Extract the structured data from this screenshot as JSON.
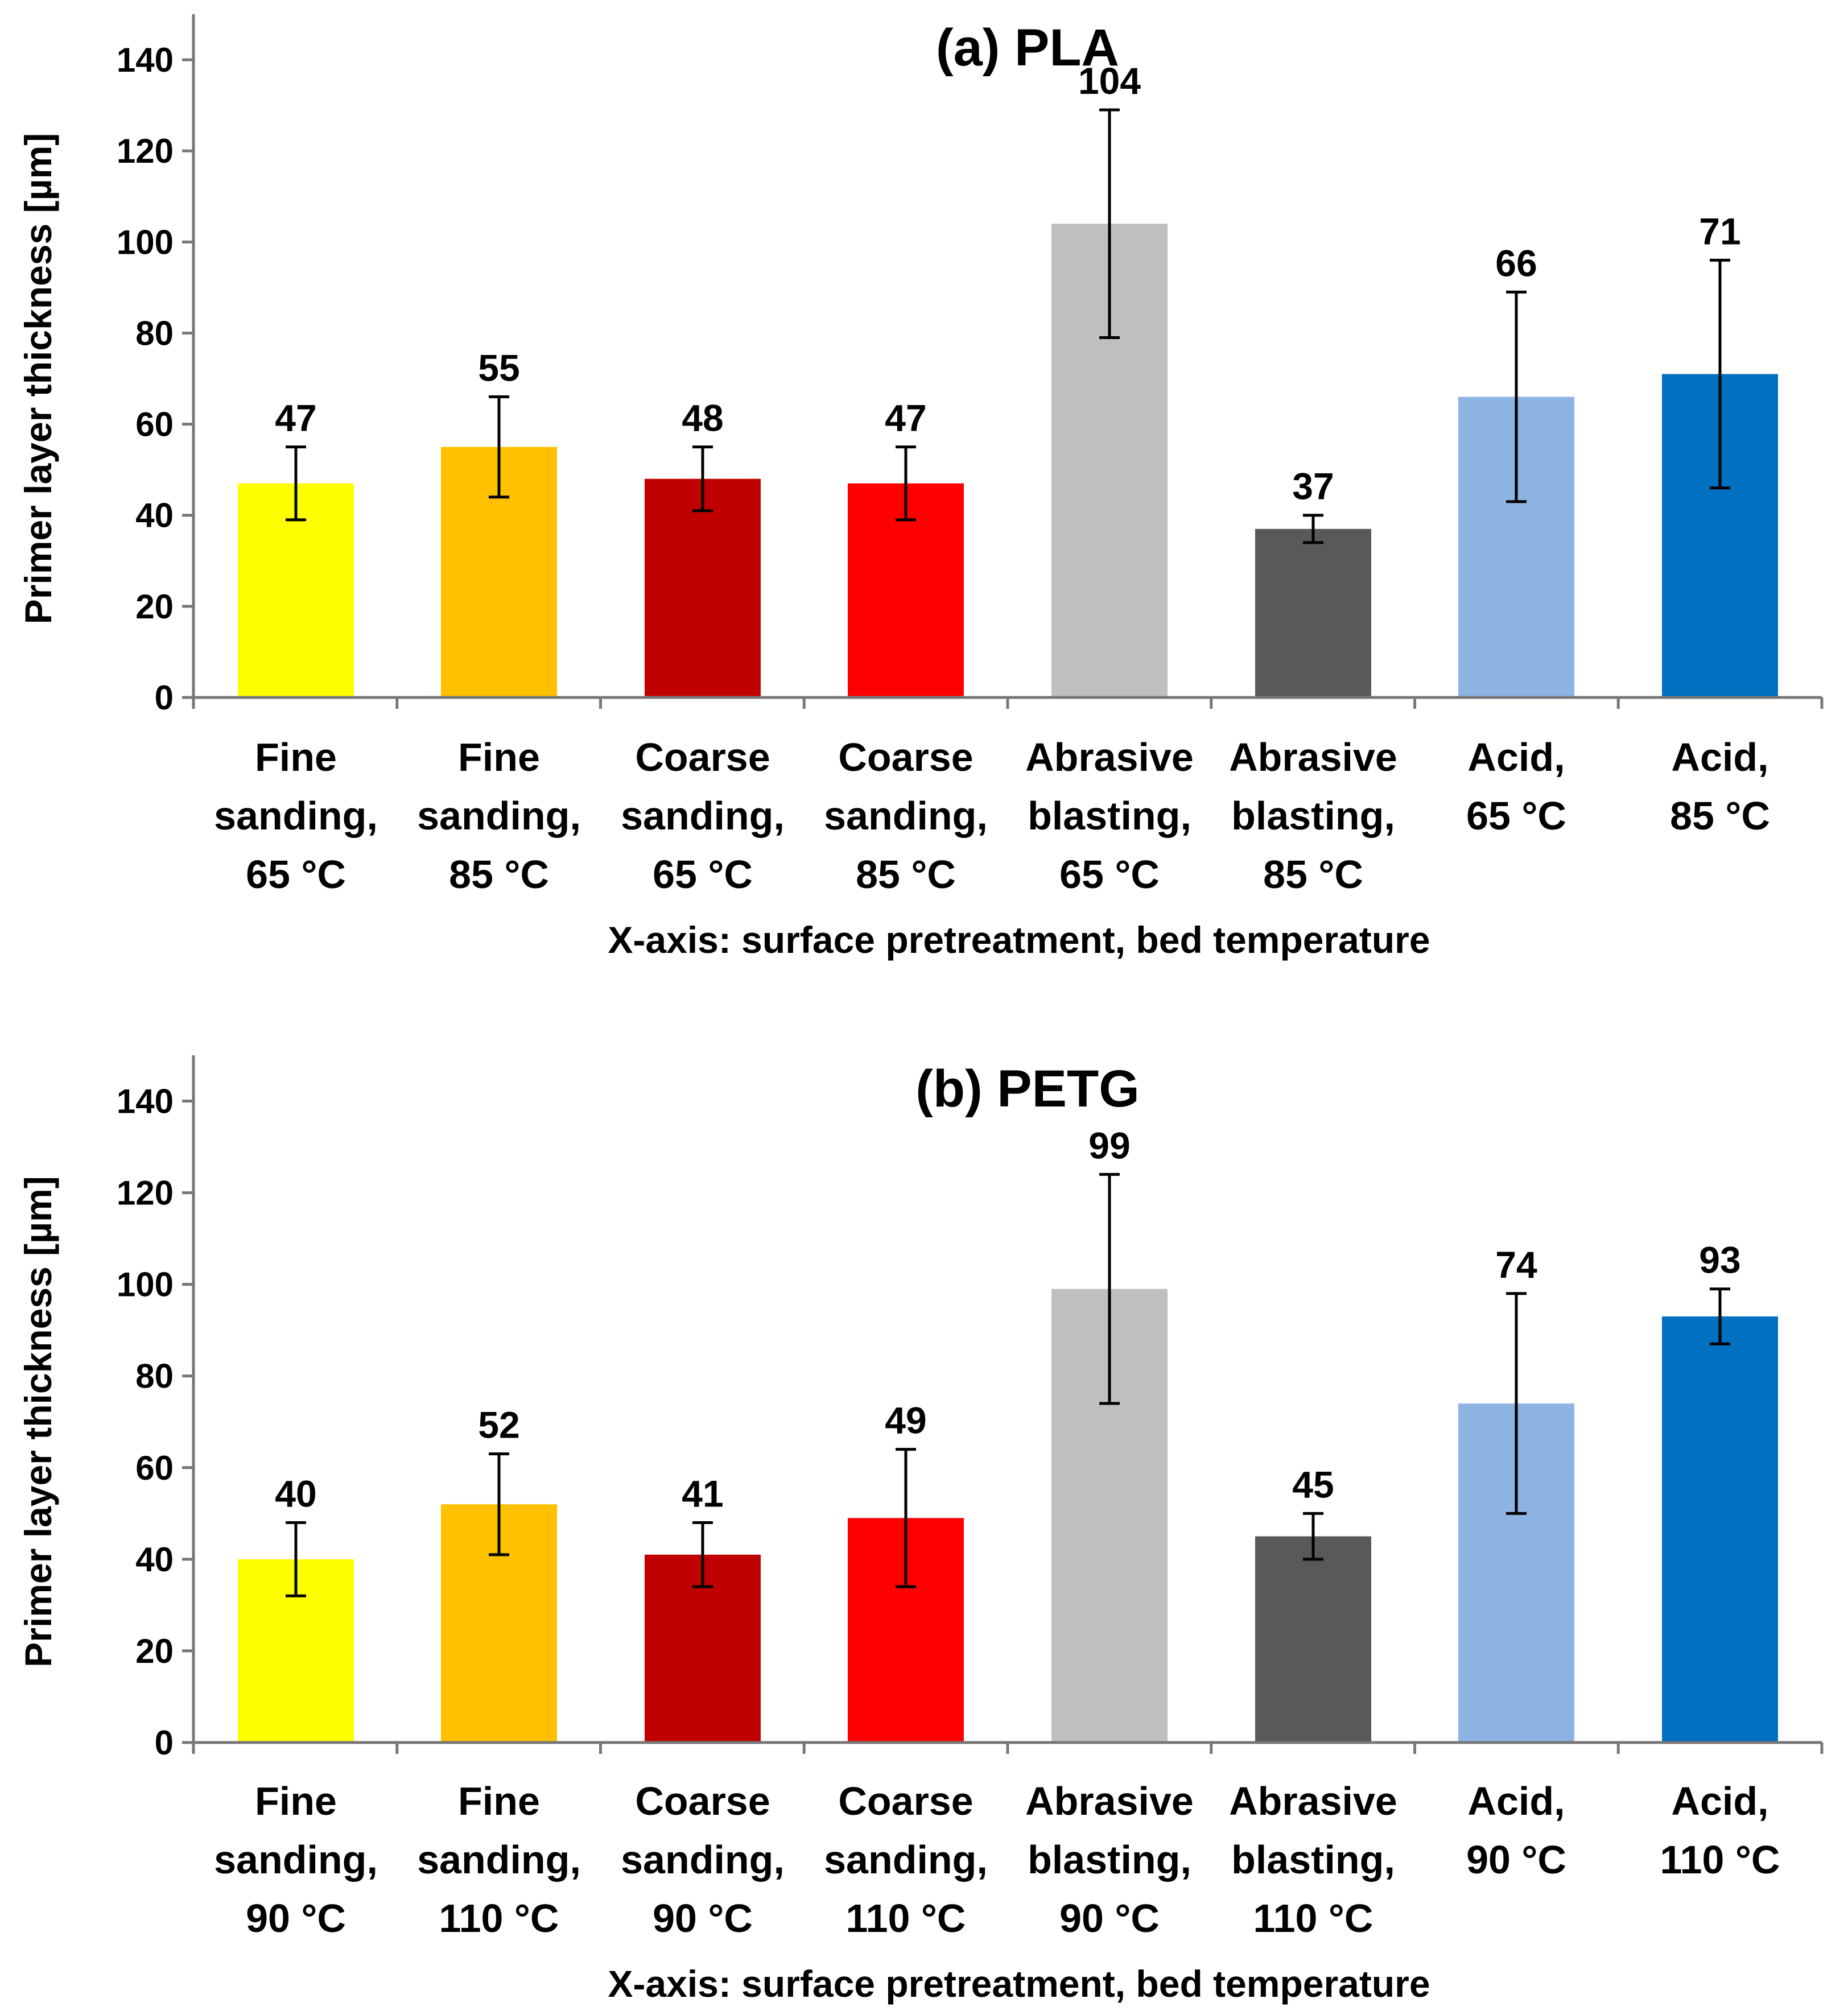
{
  "chart_data": [
    {
      "type": "bar",
      "title": "(a) PLA",
      "xlabel": "X-axis: surface pretreatment, bed temperature",
      "ylabel": "Primer layer thickness [µm]",
      "ylim": [
        0,
        150
      ],
      "yticks": [
        0,
        20,
        40,
        60,
        80,
        100,
        120,
        140
      ],
      "grid": false,
      "categories": [
        [
          "Fine",
          "sanding,",
          "65 °C"
        ],
        [
          "Fine",
          "sanding,",
          "85 °C"
        ],
        [
          "Coarse",
          "sanding,",
          "65 °C"
        ],
        [
          "Coarse",
          "sanding,",
          "85 °C"
        ],
        [
          "Abrasive",
          "blasting,",
          "65 °C"
        ],
        [
          "Abrasive",
          "blasting,",
          "85 °C"
        ],
        [
          "Acid,",
          "65 °C"
        ],
        [
          "Acid,",
          "85 °C"
        ]
      ],
      "values": [
        47,
        55,
        48,
        47,
        104,
        37,
        66,
        71
      ],
      "errors": [
        8,
        11,
        7,
        8,
        25,
        3,
        23,
        25
      ],
      "colors": [
        "#FFFF00",
        "#FFC000",
        "#C00000",
        "#FF0000",
        "#BFBFBF",
        "#595959",
        "#8EB4E3",
        "#0070C0"
      ]
    },
    {
      "type": "bar",
      "title": "(b) PETG",
      "xlabel": "X-axis: surface pretreatment, bed temperature",
      "ylabel": "Primer layer thickness [µm]",
      "ylim": [
        0,
        150
      ],
      "yticks": [
        0,
        20,
        40,
        60,
        80,
        100,
        120,
        140
      ],
      "grid": false,
      "categories": [
        [
          "Fine",
          "sanding,",
          "90 °C"
        ],
        [
          "Fine",
          "sanding,",
          "110 °C"
        ],
        [
          "Coarse",
          "sanding,",
          "90 °C"
        ],
        [
          "Coarse",
          "sanding,",
          "110 °C"
        ],
        [
          "Abrasive",
          "blasting,",
          "90 °C"
        ],
        [
          "Abrasive",
          "blasting,",
          "110 °C"
        ],
        [
          "Acid,",
          "90 °C"
        ],
        [
          "Acid,",
          "110 °C"
        ]
      ],
      "values": [
        40,
        52,
        41,
        49,
        99,
        45,
        74,
        93
      ],
      "errors": [
        8,
        11,
        7,
        15,
        25,
        5,
        24,
        6
      ],
      "colors": [
        "#FFFF00",
        "#FFC000",
        "#C00000",
        "#FF0000",
        "#BFBFBF",
        "#595959",
        "#8EB4E3",
        "#0070C0"
      ]
    }
  ]
}
